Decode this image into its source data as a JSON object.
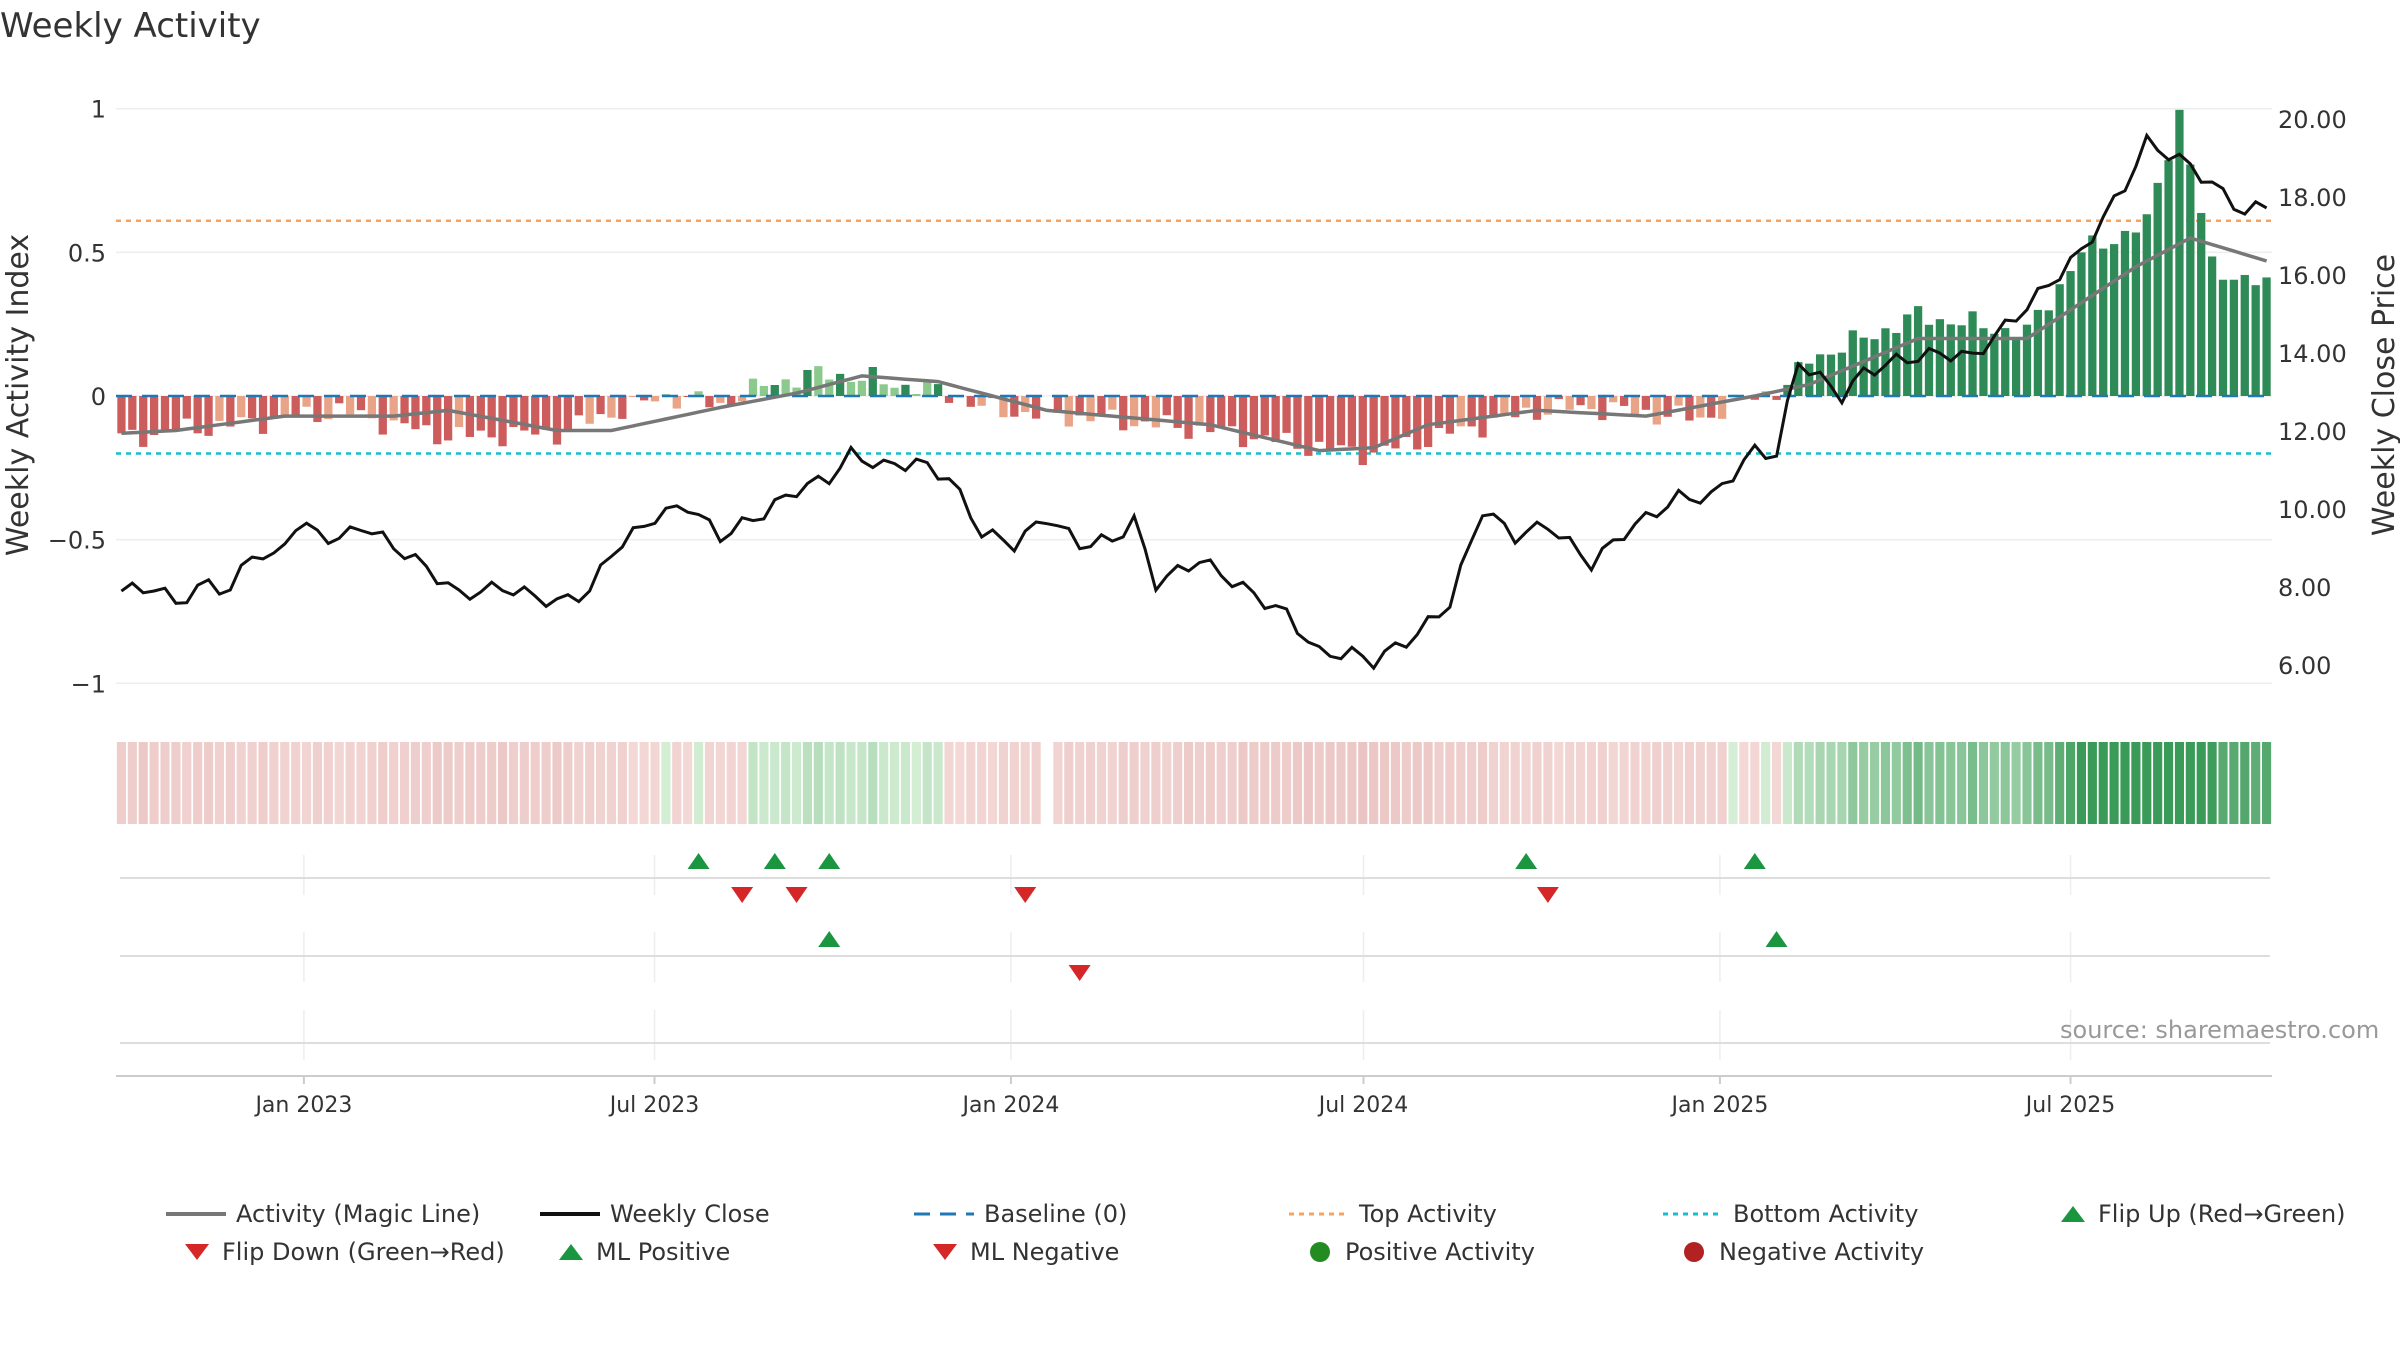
{
  "title": "Weekly Activity",
  "source": "source: sharemaestro.com",
  "colors": {
    "pos_strong": "#2e8b57",
    "pos_weak": "#8cc98c",
    "neg_strong": "#cd5c5c",
    "neg_weak": "#e9a386",
    "magic": "#777777",
    "close": "#111111",
    "baseline": "#1f77b4",
    "top": "#f4a460",
    "bottom": "#17becf",
    "flip_up": "#1a9641",
    "flip_down": "#d62728"
  },
  "legend": {
    "activity": "Activity (Magic Line)",
    "close": "Weekly Close",
    "baseline": "Baseline (0)",
    "top": "Top Activity",
    "bottom": "Bottom Activity",
    "flip_up": "Flip Up (Red→Green)",
    "flip_down": "Flip Down (Green→Red)",
    "ml_pos": "ML Positive",
    "ml_neg": "ML Negative",
    "pos_act": "Positive Activity",
    "neg_act": "Negative Activity"
  },
  "chart_data": {
    "type": "bar",
    "title": "Weekly Activity",
    "ylabel": "Weekly Activity Index",
    "y2label": "Weekly Close Price",
    "ylim": [
      -1.1,
      1.1
    ],
    "y2lim": [
      4.8,
      21.0
    ],
    "yticks": [
      1,
      0.5,
      0,
      -0.5,
      -1
    ],
    "ytick_labels": [
      "1",
      "0.5",
      "0",
      "−0.5",
      "−1"
    ],
    "y2ticks": [
      20,
      18,
      16,
      14,
      12,
      10,
      8,
      6
    ],
    "y2tick_labels": [
      "20.00",
      "18.00",
      "16.00",
      "14.00",
      "12.00",
      "10.00",
      "8.00",
      "6.00"
    ],
    "top_activity": 0.61,
    "bottom_activity": -0.2,
    "baseline": 0,
    "x_start": "2022-09-26",
    "x_end": "2025-10-13",
    "xticks": [
      "2023-01-01",
      "2023-07-01",
      "2024-01-01",
      "2024-07-01",
      "2025-01-01",
      "2025-07-01"
    ],
    "xtick_labels": [
      "Jan 2023",
      "Jul 2023",
      "Jan 2024",
      "Jul 2024",
      "Jan 2025",
      "Jul 2025"
    ],
    "activity_keys": [
      [
        0,
        -0.15
      ],
      [
        5,
        -0.12
      ],
      [
        10,
        -0.1
      ],
      [
        15,
        -0.08
      ],
      [
        20,
        -0.05
      ],
      [
        25,
        -0.1
      ],
      [
        30,
        -0.14
      ],
      [
        40,
        -0.13
      ],
      [
        45,
        -0.06
      ],
      [
        50,
        0.0
      ],
      [
        55,
        -0.03
      ],
      [
        60,
        0.05
      ],
      [
        65,
        0.08
      ],
      [
        70,
        0.05
      ],
      [
        75,
        0.02
      ],
      [
        80,
        -0.05
      ],
      [
        90,
        -0.08
      ],
      [
        100,
        -0.12
      ],
      [
        110,
        -0.18
      ],
      [
        115,
        -0.2
      ],
      [
        120,
        -0.15
      ],
      [
        125,
        -0.1
      ],
      [
        130,
        -0.05
      ],
      [
        135,
        -0.04
      ],
      [
        140,
        -0.06
      ],
      [
        145,
        -0.08
      ],
      [
        150,
        0.0
      ],
      [
        153,
        0.03
      ],
      [
        155,
        0.13
      ],
      [
        160,
        0.2
      ],
      [
        165,
        0.28
      ],
      [
        170,
        0.25
      ],
      [
        175,
        0.22
      ],
      [
        180,
        0.5
      ],
      [
        186,
        0.6
      ],
      [
        189,
        0.99
      ],
      [
        192,
        0.45
      ],
      [
        197,
        0.38
      ]
    ],
    "magic_keys": [
      [
        0,
        -0.13
      ],
      [
        5,
        -0.12
      ],
      [
        15,
        -0.07
      ],
      [
        25,
        -0.07
      ],
      [
        30,
        -0.05
      ],
      [
        40,
        -0.12
      ],
      [
        45,
        -0.12
      ],
      [
        55,
        -0.04
      ],
      [
        62,
        0.01
      ],
      [
        68,
        0.07
      ],
      [
        75,
        0.05
      ],
      [
        85,
        -0.05
      ],
      [
        100,
        -0.1
      ],
      [
        110,
        -0.19
      ],
      [
        115,
        -0.18
      ],
      [
        120,
        -0.1
      ],
      [
        130,
        -0.05
      ],
      [
        140,
        -0.07
      ],
      [
        150,
        0.0
      ],
      [
        155,
        0.04
      ],
      [
        165,
        0.2
      ],
      [
        175,
        0.2
      ],
      [
        185,
        0.45
      ],
      [
        190,
        0.55
      ],
      [
        197,
        0.47
      ]
    ],
    "close_keys": [
      [
        0,
        7.9
      ],
      [
        3,
        8.0
      ],
      [
        5,
        7.6
      ],
      [
        8,
        8.1
      ],
      [
        10,
        7.9
      ],
      [
        12,
        8.9
      ],
      [
        14,
        8.7
      ],
      [
        16,
        9.6
      ],
      [
        20,
        9.2
      ],
      [
        22,
        9.6
      ],
      [
        28,
        8.5
      ],
      [
        31,
        7.8
      ],
      [
        35,
        8.0
      ],
      [
        40,
        7.6
      ],
      [
        43,
        7.9
      ],
      [
        45,
        8.9
      ],
      [
        49,
        9.8
      ],
      [
        52,
        10.1
      ],
      [
        55,
        9.3
      ],
      [
        57,
        9.6
      ],
      [
        59,
        9.9
      ],
      [
        62,
        10.5
      ],
      [
        65,
        10.8
      ],
      [
        67,
        11.4
      ],
      [
        70,
        11.1
      ],
      [
        73,
        11.2
      ],
      [
        76,
        10.8
      ],
      [
        79,
        9.4
      ],
      [
        82,
        9.1
      ],
      [
        85,
        9.8
      ],
      [
        88,
        9.1
      ],
      [
        91,
        9.2
      ],
      [
        93,
        9.7
      ],
      [
        95,
        8.1
      ],
      [
        99,
        8.7
      ],
      [
        104,
        7.8
      ],
      [
        107,
        7.3
      ],
      [
        110,
        6.3
      ],
      [
        113,
        6.3
      ],
      [
        115,
        6.1
      ],
      [
        119,
        6.8
      ],
      [
        122,
        7.6
      ],
      [
        125,
        10.0
      ],
      [
        128,
        9.3
      ],
      [
        131,
        9.6
      ],
      [
        135,
        8.6
      ],
      [
        138,
        9.4
      ],
      [
        143,
        10.3
      ],
      [
        146,
        10.3
      ],
      [
        150,
        11.5
      ],
      [
        152,
        11.4
      ],
      [
        154,
        13.8
      ],
      [
        158,
        12.9
      ],
      [
        160,
        13.5
      ],
      [
        163,
        13.8
      ],
      [
        167,
        14.0
      ],
      [
        170,
        13.9
      ],
      [
        175,
        15.2
      ],
      [
        180,
        16.6
      ],
      [
        184,
        18.3
      ],
      [
        186,
        19.4
      ],
      [
        190,
        18.8
      ],
      [
        195,
        17.6
      ],
      [
        197,
        17.8
      ]
    ],
    "gaps": [
      85
    ],
    "flip_up": [
      53,
      60,
      65,
      129,
      150
    ],
    "flip_down": [
      57,
      62,
      83,
      131
    ],
    "ml_positive": [
      65,
      152
    ],
    "ml_negative": [
      88
    ]
  }
}
